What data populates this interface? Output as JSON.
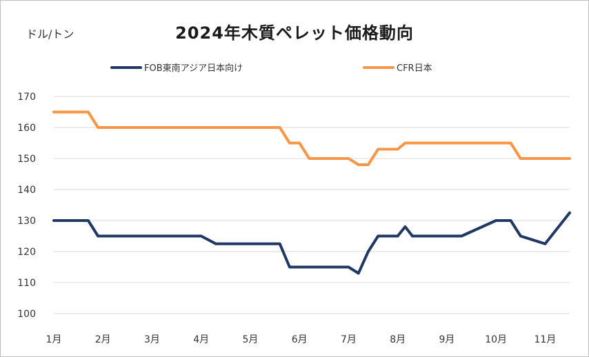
{
  "chart_data": {
    "type": "line",
    "title": "2024年木質ペレット価格動向",
    "ylabel": "ドル/トン",
    "xlabel": "",
    "ylim": [
      100,
      170
    ],
    "yticks": [
      100,
      110,
      120,
      130,
      140,
      150,
      160,
      170
    ],
    "month_labels": [
      "1月",
      "2月",
      "3月",
      "4月",
      "5月",
      "6月",
      "7月",
      "8月",
      "9月",
      "10月",
      "11月"
    ],
    "grid": true,
    "legend_position": "top",
    "x": [
      1.0,
      1.7,
      1.9,
      2.0,
      4.0,
      4.3,
      5.0,
      5.6,
      5.8,
      6.0,
      6.2,
      7.0,
      7.2,
      7.4,
      7.6,
      8.0,
      8.15,
      8.3,
      9.0,
      9.3,
      10.0,
      10.3,
      10.5,
      11.0,
      11.5
    ],
    "series": [
      {
        "name": "FOB東南アジア日本向け",
        "color": "#1f3864",
        "values": [
          130,
          130,
          125,
          125,
          125,
          122.5,
          122.5,
          122.5,
          115,
          115,
          115,
          115,
          113,
          120,
          125,
          125,
          128,
          125,
          125,
          125,
          130,
          130,
          125,
          122.5,
          132.5
        ]
      },
      {
        "name": "CFR日本",
        "color": "#f79646",
        "values": [
          165,
          165,
          160,
          160,
          160,
          160,
          160,
          160,
          155,
          155,
          150,
          150,
          148,
          148,
          153,
          153,
          155,
          155,
          155,
          155,
          155,
          155,
          150,
          150,
          150
        ]
      }
    ]
  }
}
